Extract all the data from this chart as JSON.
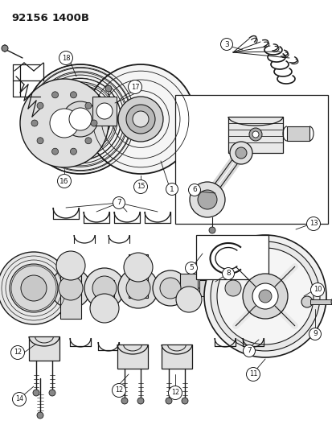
{
  "title": "92156  1400B",
  "bg_color": "#ffffff",
  "lc": "#1a1a1a",
  "fig_width": 4.14,
  "fig_height": 5.33,
  "dpi": 100
}
